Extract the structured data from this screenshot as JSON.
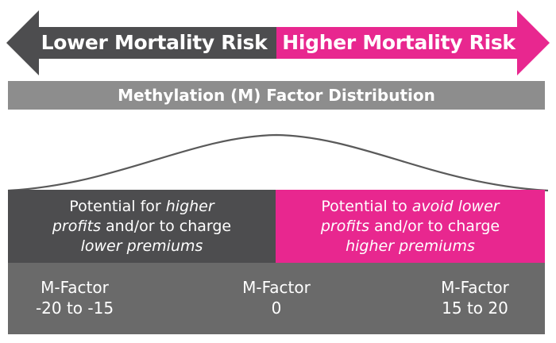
{
  "colors": {
    "dark_gray": "#4d4d4f",
    "pink": "#e8278f",
    "bar_gray": "#8d8d8d",
    "strip_gray": "#6a6a6a",
    "curve_gray": "#5a5a5a"
  },
  "arrow": {
    "left_label": "Lower Mortality Risk",
    "right_label": "Higher Mortality Risk"
  },
  "title_bar": {
    "text": "Methylation (M) Factor Distribution"
  },
  "outcomes": {
    "left": {
      "l1_a": "Potential for ",
      "l1_em": "higher",
      "l2_em": "profits",
      "l2_b": " and/or to charge",
      "l3_em": "lower premiums"
    },
    "right": {
      "l1_a": "Potential to ",
      "l1_em": "avoid lower",
      "l2_em": "profits",
      "l2_b": " and/or to charge",
      "l3_em": "higher premiums"
    }
  },
  "m_factors": [
    {
      "label": "M-Factor",
      "value": "-20 to -15"
    },
    {
      "label": "M-Factor",
      "value": "0"
    },
    {
      "label": "M-Factor",
      "value": "15 to 20"
    }
  ]
}
